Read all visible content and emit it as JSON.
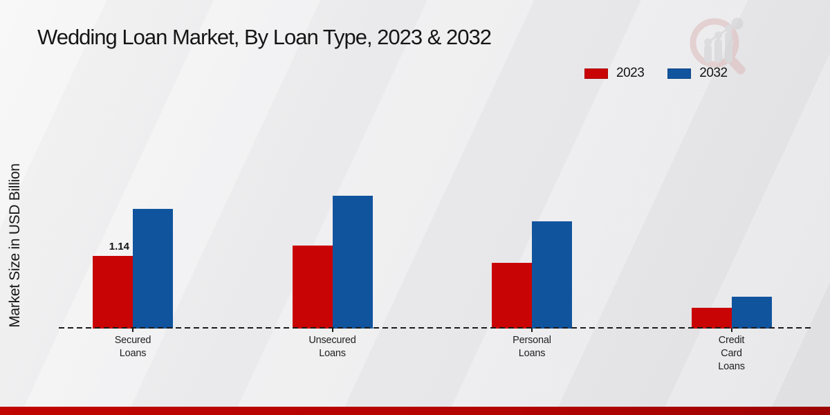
{
  "page": {
    "title": "Wedding Loan Market, By Loan Type, 2023 & 2032",
    "y_axis_label": "Market Size in USD Billion"
  },
  "legend": {
    "items": [
      {
        "label": "2023",
        "color": "#c90404"
      },
      {
        "label": "2032",
        "color": "#11549e"
      }
    ]
  },
  "colors": {
    "series_2023": "#c90404",
    "series_2032": "#11549e",
    "footer_band": "#b30400",
    "axis_line": "#1a1a1a",
    "logo_ring": "#dcb9b9",
    "logo_bars": "#cfcfd1"
  },
  "chart_data": {
    "type": "bar",
    "title": "Wedding Loan Market, By Loan Type, 2023 & 2032",
    "ylabel": "Market Size in USD Billion",
    "categories": [
      "Secured\nLoans",
      "Unsecured\nLoans",
      "Personal\nLoans",
      "Credit\nCard\nLoans"
    ],
    "series": [
      {
        "name": "2023",
        "color": "#c90404",
        "values": [
          1.14,
          1.3,
          1.03,
          0.33
        ]
      },
      {
        "name": "2032",
        "color": "#11549e",
        "values": [
          1.88,
          2.08,
          1.68,
          0.5
        ]
      }
    ],
    "value_labels": [
      {
        "series": "2023",
        "category_index": 0,
        "text": "1.14"
      }
    ],
    "ylim": [
      0,
      2.3
    ],
    "grid": false,
    "axes_shown": false,
    "baseline_style": "dashed",
    "legend_position": "top-right"
  }
}
